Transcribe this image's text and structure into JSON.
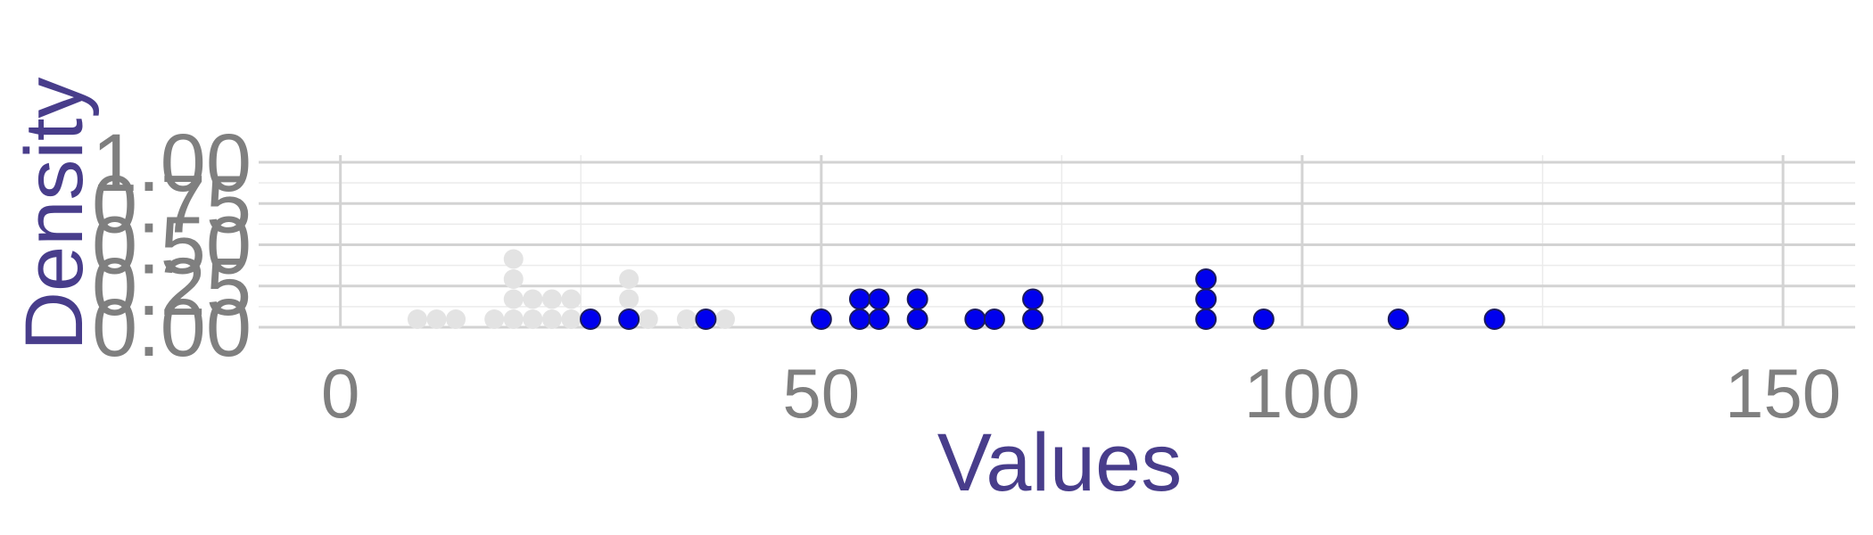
{
  "chart_data": {
    "type": "scatter",
    "title": "",
    "xlabel": "Values",
    "ylabel": "Density",
    "xlim": [
      -8.5,
      157.5
    ],
    "ylim": [
      0,
      1.0
    ],
    "x_ticks": [
      0,
      50,
      100,
      150
    ],
    "x_tick_labels": [
      "0",
      "50",
      "100",
      "150"
    ],
    "y_ticks": [
      0,
      0.25,
      0.5,
      0.75,
      1.0
    ],
    "y_tick_labels": [
      "0.00",
      "0.25",
      "0.50",
      "0.75",
      "1.00"
    ],
    "grid": true,
    "legend": "none",
    "colors": {
      "highlight_fill": "#0000ee",
      "highlight_stroke": "#1a1a60",
      "background_points": "#e3e3e3",
      "axis_title": "#483d8b",
      "tick_label": "#7f7f7f",
      "grid_major": "#d3d3d3",
      "grid_minor": "#ebebeb"
    },
    "series": [
      {
        "role": "background",
        "points": [
          {
            "x": 8,
            "y": 0.0
          },
          {
            "x": 10,
            "y": 0.0
          },
          {
            "x": 12,
            "y": 0.0
          },
          {
            "x": 16,
            "y": 0.0
          },
          {
            "x": 18,
            "y": 0.0
          },
          {
            "x": 18,
            "y": 0.125
          },
          {
            "x": 18,
            "y": 0.25
          },
          {
            "x": 18,
            "y": 0.375
          },
          {
            "x": 20,
            "y": 0.0
          },
          {
            "x": 20,
            "y": 0.125
          },
          {
            "x": 22,
            "y": 0.0
          },
          {
            "x": 22,
            "y": 0.125
          },
          {
            "x": 24,
            "y": 0.0
          },
          {
            "x": 24,
            "y": 0.125
          },
          {
            "x": 30,
            "y": 0.125
          },
          {
            "x": 30,
            "y": 0.25
          },
          {
            "x": 32,
            "y": 0.0
          },
          {
            "x": 36,
            "y": 0.0
          },
          {
            "x": 40,
            "y": 0.0
          }
        ]
      },
      {
        "role": "highlight",
        "points": [
          {
            "x": 26,
            "y": 0.0
          },
          {
            "x": 30,
            "y": 0.0
          },
          {
            "x": 38,
            "y": 0.0
          },
          {
            "x": 50,
            "y": 0.0
          },
          {
            "x": 54,
            "y": 0.0
          },
          {
            "x": 54,
            "y": 0.125
          },
          {
            "x": 56,
            "y": 0.0
          },
          {
            "x": 56,
            "y": 0.125
          },
          {
            "x": 60,
            "y": 0.0
          },
          {
            "x": 60,
            "y": 0.125
          },
          {
            "x": 66,
            "y": 0.0
          },
          {
            "x": 68,
            "y": 0.0
          },
          {
            "x": 72,
            "y": 0.0
          },
          {
            "x": 72,
            "y": 0.125
          },
          {
            "x": 90,
            "y": 0.0
          },
          {
            "x": 90,
            "y": 0.125
          },
          {
            "x": 90,
            "y": 0.25
          },
          {
            "x": 96,
            "y": 0.0
          },
          {
            "x": 110,
            "y": 0.0
          },
          {
            "x": 120,
            "y": 0.0
          }
        ]
      }
    ]
  }
}
